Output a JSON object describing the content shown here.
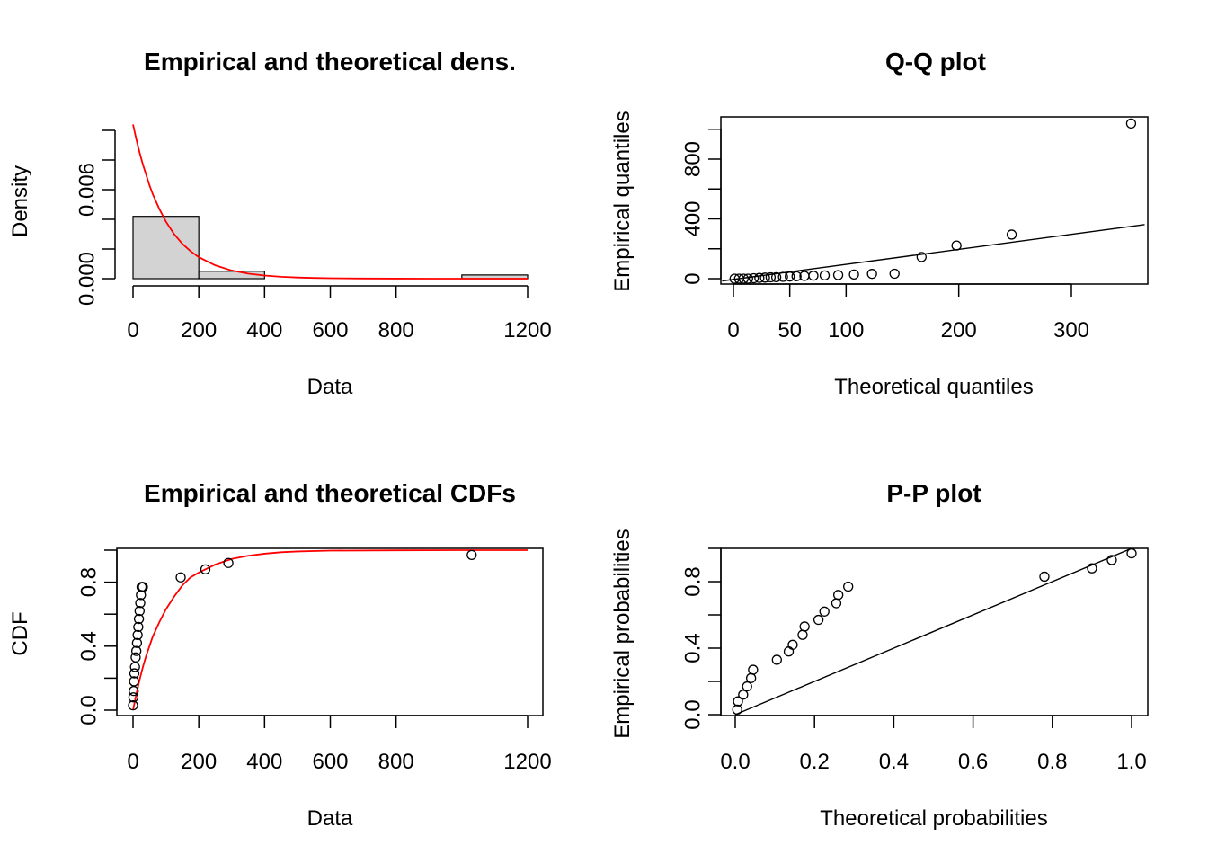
{
  "chart_data": [
    {
      "type": "histogram",
      "title": "Empirical and theoretical dens.",
      "xlabel": "Data",
      "ylabel": "Density",
      "xlim": [
        0,
        1200
      ],
      "ylim": [
        0,
        0.01
      ],
      "xticks": [
        0,
        200,
        400,
        600,
        800,
        1200
      ],
      "xtick_labels": [
        "0",
        "200",
        "400",
        "600",
        "800",
        "1200"
      ],
      "yticks": [
        0,
        0.002,
        0.004,
        0.006,
        0.008,
        0.01
      ],
      "ytick_labels": [
        "0.000",
        "",
        "",
        "0.006",
        "",
        ""
      ],
      "bins": [
        {
          "x0": 0,
          "x1": 200,
          "density": 0.0042
        },
        {
          "x0": 200,
          "x1": 400,
          "density": 0.0005
        },
        {
          "x0": 400,
          "x1": 600,
          "density": 0
        },
        {
          "x0": 600,
          "x1": 800,
          "density": 0
        },
        {
          "x0": 800,
          "x1": 1000,
          "density": 0
        },
        {
          "x0": 1000,
          "x1": 1200,
          "density": 0.00025
        }
      ],
      "curve": {
        "x": [
          0,
          10,
          20,
          30,
          40,
          50,
          60,
          80,
          100,
          125,
          150,
          175,
          200,
          250,
          300,
          350,
          400,
          450,
          500,
          550,
          600,
          700,
          800,
          900,
          1000,
          1100,
          1200
        ],
        "y": [
          0.0104,
          0.0094,
          0.0085,
          0.0077,
          0.007,
          0.0063,
          0.0057,
          0.0047,
          0.00385,
          0.003,
          0.00235,
          0.00185,
          0.00145,
          0.0009,
          0.00055,
          0.00034,
          0.00021,
          0.00013,
          8e-05,
          5e-05,
          3e-05,
          1e-05,
          4e-06,
          1.5e-06,
          6e-07,
          2e-07,
          1e-07
        ]
      },
      "colors": {
        "bar_fill": "#d3d3d3",
        "curve": "#ff0000"
      }
    },
    {
      "type": "scatter",
      "title": "Q-Q plot",
      "xlabel": "Theoretical quantiles",
      "ylabel": "Empirical quantiles",
      "xlim": [
        -10,
        365
      ],
      "ylim": [
        -40,
        1070
      ],
      "xticks": [
        0,
        50,
        100,
        200,
        300
      ],
      "xtick_labels": [
        "0",
        "50",
        "100",
        "200",
        "300"
      ],
      "yticks": [
        0,
        200,
        400,
        600,
        800,
        1000
      ],
      "ytick_labels": [
        "0",
        "",
        "400",
        "",
        "800",
        ""
      ],
      "points": {
        "x": [
          1,
          5,
          9,
          13,
          18,
          23,
          28,
          33,
          38,
          44,
          50,
          56,
          63,
          71,
          81,
          93,
          107,
          123,
          143,
          167,
          198,
          247,
          353
        ],
        "y": [
          0,
          0,
          0,
          0,
          3,
          5,
          7,
          9,
          10,
          12,
          14,
          16,
          18,
          20,
          22,
          24,
          28,
          32,
          33,
          145,
          222,
          295,
          1038
        ]
      },
      "line": {
        "x": [
          -10,
          365
        ],
        "y": [
          -15,
          362
        ]
      }
    },
    {
      "type": "scatter",
      "title": "Empirical and theoretical CDFs",
      "xlabel": "Data",
      "ylabel": "CDF",
      "xlim": [
        0,
        1200
      ],
      "ylim": [
        0,
        1.0
      ],
      "xticks": [
        0,
        200,
        400,
        600,
        800,
        1200
      ],
      "xtick_labels": [
        "0",
        "200",
        "400",
        "600",
        "800",
        "1200"
      ],
      "yticks": [
        0,
        0.2,
        0.4,
        0.6,
        0.8,
        1.0
      ],
      "ytick_labels": [
        "0.0",
        "",
        "0.4",
        "",
        "0.8",
        ""
      ],
      "points": {
        "x": [
          0,
          1,
          2,
          3,
          4,
          6,
          8,
          10,
          12,
          14,
          16,
          18,
          20,
          22,
          24,
          26,
          28,
          30,
          145,
          220,
          290,
          1030
        ],
        "y": [
          0.03,
          0.08,
          0.12,
          0.18,
          0.23,
          0.27,
          0.33,
          0.37,
          0.42,
          0.47,
          0.52,
          0.57,
          0.62,
          0.67,
          0.72,
          0.77,
          0.77,
          0.77,
          0.83,
          0.88,
          0.92,
          0.97
        ]
      },
      "curve": {
        "x": [
          0,
          10,
          20,
          30,
          40,
          50,
          60,
          80,
          100,
          125,
          150,
          175,
          200,
          250,
          300,
          350,
          400,
          450,
          500,
          600,
          800,
          1000,
          1200
        ],
        "y": [
          0,
          0.1,
          0.19,
          0.27,
          0.34,
          0.4,
          0.46,
          0.55,
          0.63,
          0.71,
          0.78,
          0.83,
          0.86,
          0.91,
          0.945,
          0.965,
          0.978,
          0.987,
          0.992,
          0.997,
          0.999,
          1.0,
          1.0
        ]
      },
      "colors": {
        "curve": "#ff0000"
      }
    },
    {
      "type": "scatter",
      "title": "P-P plot",
      "xlabel": "Theoretical probabilities",
      "ylabel": "Empirical probabilities",
      "xlim": [
        -0.04,
        1.04
      ],
      "ylim": [
        -0.04,
        1.04
      ],
      "xticks": [
        0,
        0.2,
        0.4,
        0.6,
        0.8,
        1.0
      ],
      "xtick_labels": [
        "0.0",
        "0.2",
        "0.4",
        "0.6",
        "0.8",
        "1.0"
      ],
      "yticks": [
        0,
        0.2,
        0.4,
        0.6,
        0.8,
        1.0
      ],
      "ytick_labels": [
        "0.0",
        "",
        "0.4",
        "",
        "0.8",
        ""
      ],
      "points": {
        "x": [
          0.005,
          0.007,
          0.02,
          0.03,
          0.04,
          0.045,
          0.105,
          0.135,
          0.145,
          0.17,
          0.175,
          0.21,
          0.225,
          0.255,
          0.26,
          0.285,
          0.78,
          0.9,
          0.95,
          1.0
        ],
        "y": [
          0.03,
          0.08,
          0.12,
          0.17,
          0.22,
          0.27,
          0.33,
          0.38,
          0.42,
          0.48,
          0.53,
          0.57,
          0.62,
          0.67,
          0.72,
          0.77,
          0.83,
          0.88,
          0.93,
          0.97
        ]
      },
      "line": {
        "x": [
          0,
          1.04
        ],
        "y": [
          0,
          1.04
        ]
      }
    }
  ]
}
